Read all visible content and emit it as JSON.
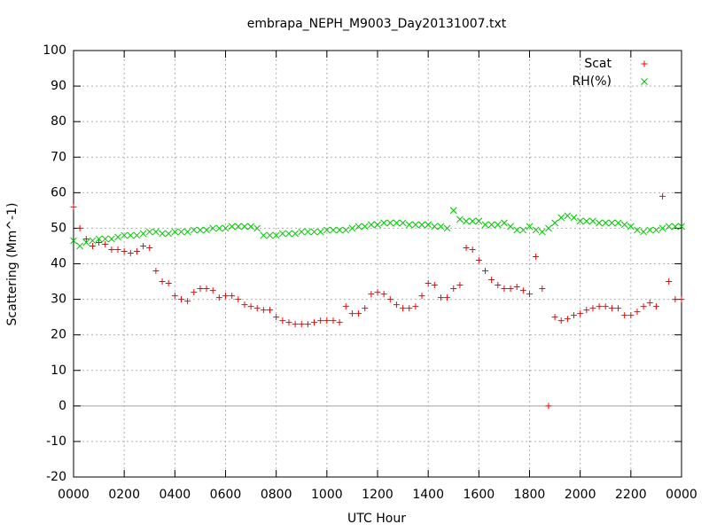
{
  "chart_data": {
    "type": "scatter",
    "title": "embrapa_NEPH_M9003_Day20131007.txt",
    "x_label": "UTC Hour",
    "y_label": "Scattering (Mm^-1)",
    "x": [
      0,
      0.25,
      0.5,
      0.75,
      1,
      1.25,
      1.5,
      1.75,
      2,
      2.25,
      2.5,
      2.75,
      3,
      3.25,
      3.5,
      3.75,
      4,
      4.25,
      4.5,
      4.75,
      5,
      5.25,
      5.5,
      5.75,
      6,
      6.25,
      6.5,
      6.75,
      7,
      7.25,
      7.5,
      7.75,
      8,
      8.25,
      8.5,
      8.75,
      9,
      9.25,
      9.5,
      9.75,
      10,
      10.25,
      10.5,
      10.75,
      11,
      11.25,
      11.5,
      11.75,
      12,
      12.25,
      12.5,
      12.75,
      13,
      13.25,
      13.5,
      13.75,
      14,
      14.25,
      14.5,
      14.75,
      15,
      15.25,
      15.5,
      15.75,
      16,
      16.25,
      16.5,
      16.75,
      17,
      17.25,
      17.5,
      17.75,
      18,
      18.25,
      18.5,
      18.75,
      19,
      19.25,
      19.5,
      19.75,
      20,
      20.25,
      20.5,
      20.75,
      21,
      21.25,
      21.5,
      21.75,
      22,
      22.25,
      22.5,
      22.75,
      23,
      23.25,
      23.5,
      23.75,
      24
    ],
    "series": [
      {
        "name": "Scat",
        "color": "#ff0000",
        "marker": "plus",
        "values": [
          56,
          50,
          47,
          45,
          46,
          45.5,
          44,
          44,
          43.5,
          43,
          43.5,
          45,
          44.5,
          38,
          35,
          34.5,
          31,
          30,
          29.5,
          32,
          33,
          33,
          32.5,
          30.5,
          31,
          31,
          30,
          28.5,
          28,
          27.5,
          27,
          27,
          25,
          24,
          23.5,
          23,
          23,
          23,
          23.5,
          24,
          24,
          24,
          23.5,
          28,
          26,
          26,
          27.5,
          31.5,
          32,
          31.5,
          30,
          28.5,
          27.5,
          27.5,
          28,
          31,
          34.5,
          34,
          30.5,
          30.5,
          33,
          34,
          44.5,
          44,
          41,
          38,
          35.5,
          34,
          33,
          33,
          33.5,
          32.5,
          31.5,
          42,
          33,
          0,
          25,
          24,
          24.5,
          25.5,
          26,
          27,
          27.5,
          28,
          28,
          27.5,
          27.5,
          25.5,
          25.5,
          26.5,
          28,
          29,
          28,
          59,
          35,
          30,
          30
        ]
      },
      {
        "name": "RH(%)",
        "color": "#00c000",
        "marker": "cross",
        "values": [
          46.5,
          45,
          46,
          46.5,
          47,
          47,
          47,
          47.5,
          48,
          48,
          48,
          48.5,
          49,
          49,
          48.5,
          48.5,
          49,
          49,
          49,
          49.5,
          49.5,
          49.5,
          50,
          50,
          50,
          50.5,
          50.5,
          50.5,
          50.5,
          50,
          48,
          48,
          48,
          48.5,
          48.5,
          48.5,
          49,
          49,
          49,
          49,
          49.5,
          49.5,
          49.5,
          49.5,
          50,
          50.5,
          50.5,
          51,
          51,
          51.5,
          51.5,
          51.5,
          51.5,
          51,
          51,
          51,
          51,
          50.5,
          50.5,
          50,
          55,
          52.5,
          52,
          52,
          52,
          51,
          51,
          51,
          51.5,
          50.5,
          49.5,
          49.5,
          50.5,
          49.5,
          49,
          50,
          51.5,
          53,
          53.5,
          53,
          52,
          52,
          52,
          51.5,
          51.5,
          51.5,
          51.5,
          51,
          50.5,
          49.5,
          49,
          49.5,
          49.5,
          50,
          50.5,
          50.5,
          50.5
        ]
      }
    ],
    "xlim": [
      0,
      24
    ],
    "xticks": [
      {
        "value": 0,
        "label": "0000"
      },
      {
        "value": 2,
        "label": "0200"
      },
      {
        "value": 4,
        "label": "0400"
      },
      {
        "value": 6,
        "label": "0600"
      },
      {
        "value": 8,
        "label": "0800"
      },
      {
        "value": 10,
        "label": "1000"
      },
      {
        "value": 12,
        "label": "1200"
      },
      {
        "value": 14,
        "label": "1400"
      },
      {
        "value": 16,
        "label": "1600"
      },
      {
        "value": 18,
        "label": "1800"
      },
      {
        "value": 20,
        "label": "2000"
      },
      {
        "value": 22,
        "label": "2200"
      },
      {
        "value": 24,
        "label": "0000"
      }
    ],
    "ylim": [
      -20,
      100
    ],
    "yticks": [
      -20,
      -10,
      0,
      10,
      20,
      30,
      40,
      50,
      60,
      70,
      80,
      90,
      100
    ],
    "grid": true,
    "legend": "upper right"
  }
}
